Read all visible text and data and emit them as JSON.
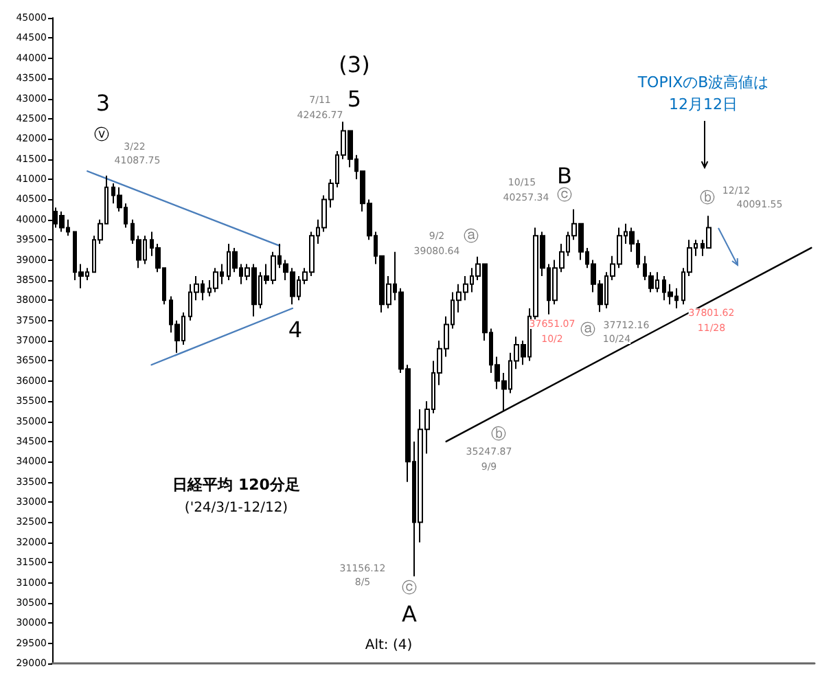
{
  "chart_data": {
    "type": "candlestick",
    "title": "日経平均 120分足",
    "subtitle": "('24/3/1-12/12)",
    "color": "#000000",
    "categories": [
      null,
      null,
      null,
      null,
      null,
      null,
      null,
      null,
      null,
      null,
      null,
      null,
      null,
      null,
      null,
      null,
      null,
      null,
      null,
      null,
      null,
      null,
      null,
      null,
      null,
      null,
      null,
      null,
      null,
      null,
      null,
      null,
      null,
      null,
      null,
      null,
      null,
      null,
      null,
      null,
      null,
      null,
      null,
      null,
      null,
      null,
      null,
      null,
      null,
      null,
      null,
      null,
      null,
      null,
      null,
      null,
      null,
      null,
      null,
      null,
      null,
      null,
      null,
      null,
      null,
      null,
      null,
      null,
      null,
      null,
      null,
      null,
      null,
      null,
      null,
      null,
      null,
      null,
      null,
      null,
      null,
      null,
      null,
      null,
      null,
      null,
      null,
      null,
      null,
      null,
      null,
      null,
      null,
      null,
      null,
      null,
      null,
      null,
      null,
      null,
      null,
      null,
      null,
      null,
      null,
      null,
      null,
      null,
      null,
      null,
      null,
      null,
      null,
      null,
      null,
      null,
      null,
      null,
      null
    ],
    "ohlc": [
      [
        40200,
        40300,
        39800,
        39900
      ],
      [
        40100,
        40200,
        39700,
        39800
      ],
      [
        39800,
        40000,
        39600,
        39700
      ],
      [
        39700,
        39700,
        38500,
        38700
      ],
      [
        38700,
        38900,
        38300,
        38600
      ],
      [
        38600,
        38800,
        38500,
        38700
      ],
      [
        38700,
        39600,
        38700,
        39500
      ],
      [
        39500,
        40000,
        39400,
        39900
      ],
      [
        39900,
        41087.75,
        39900,
        40800
      ],
      [
        40800,
        40900,
        40400,
        40600
      ],
      [
        40600,
        40800,
        40200,
        40300
      ],
      [
        40300,
        40400,
        39800,
        39900
      ],
      [
        39900,
        40000,
        39400,
        39500
      ],
      [
        39500,
        39600,
        38800,
        39000
      ],
      [
        39000,
        39600,
        38900,
        39500
      ],
      [
        39500,
        39700,
        39100,
        39300
      ],
      [
        39300,
        39400,
        38700,
        38800
      ],
      [
        38800,
        38800,
        37900,
        38000
      ],
      [
        38000,
        38100,
        37200,
        37400
      ],
      [
        37400,
        37500,
        36700,
        37000
      ],
      [
        37000,
        37700,
        36900,
        37600
      ],
      [
        37600,
        38400,
        37500,
        38200
      ],
      [
        38200,
        38600,
        38000,
        38400
      ],
      [
        38400,
        38500,
        38000,
        38200
      ],
      [
        38200,
        38500,
        38100,
        38300
      ],
      [
        38300,
        38800,
        38200,
        38700
      ],
      [
        38700,
        38900,
        38400,
        38600
      ],
      [
        38600,
        39400,
        38500,
        39200
      ],
      [
        39200,
        39300,
        38700,
        38800
      ],
      [
        38800,
        38900,
        38400,
        38600
      ],
      [
        38600,
        38900,
        38500,
        38800
      ],
      [
        38800,
        38900,
        37600,
        37900
      ],
      [
        37900,
        38700,
        37800,
        38600
      ],
      [
        38600,
        38900,
        38400,
        38500
      ],
      [
        38500,
        39200,
        38400,
        39100
      ],
      [
        39100,
        39400,
        38800,
        38900
      ],
      [
        38900,
        39000,
        38500,
        38700
      ],
      [
        38700,
        38800,
        37900,
        38100
      ],
      [
        38100,
        38600,
        38000,
        38500
      ],
      [
        38500,
        38800,
        38400,
        38700
      ],
      [
        38700,
        39700,
        38600,
        39600
      ],
      [
        39600,
        40000,
        39400,
        39800
      ],
      [
        39800,
        40600,
        39700,
        40500
      ],
      [
        40500,
        41000,
        40300,
        40900
      ],
      [
        40900,
        41700,
        40800,
        41600
      ],
      [
        41600,
        42426.77,
        41500,
        42200
      ],
      [
        42200,
        42200,
        41300,
        41500
      ],
      [
        41500,
        41600,
        41000,
        41200
      ],
      [
        41200,
        41200,
        40200,
        40400
      ],
      [
        40400,
        40500,
        39500,
        39600
      ],
      [
        39600,
        39700,
        38900,
        39100
      ],
      [
        39100,
        39100,
        37700,
        37900
      ],
      [
        37900,
        38600,
        37800,
        38400
      ],
      [
        38400,
        39200,
        38000,
        38200
      ],
      [
        38200,
        38300,
        36200,
        36300
      ],
      [
        36300,
        36400,
        33500,
        34000
      ],
      [
        34000,
        34500,
        31156.12,
        32500
      ],
      [
        32500,
        35300,
        32000,
        34800
      ],
      [
        34800,
        35500,
        34200,
        35300
      ],
      [
        35300,
        36500,
        35200,
        36200
      ],
      [
        36200,
        37000,
        35900,
        36800
      ],
      [
        36800,
        37600,
        36600,
        37400
      ],
      [
        37400,
        38200,
        37300,
        38000
      ],
      [
        38000,
        38400,
        37700,
        38200
      ],
      [
        38200,
        38600,
        38000,
        38400
      ],
      [
        38400,
        38800,
        38200,
        38600
      ],
      [
        38600,
        39080.64,
        38500,
        38900
      ],
      [
        38900,
        38900,
        37000,
        37200
      ],
      [
        37200,
        37300,
        36200,
        36400
      ],
      [
        36400,
        36600,
        35800,
        36000
      ],
      [
        36000,
        36200,
        35247.87,
        35800
      ],
      [
        35800,
        36700,
        35700,
        36500
      ],
      [
        36500,
        37100,
        36300,
        36900
      ],
      [
        36900,
        37000,
        36400,
        36600
      ],
      [
        36600,
        37800,
        36500,
        37600
      ],
      [
        37600,
        39800,
        37500,
        39600
      ],
      [
        39600,
        39700,
        38600,
        38800
      ],
      [
        38800,
        38900,
        37651.07,
        38000
      ],
      [
        38000,
        39000,
        37900,
        38800
      ],
      [
        38800,
        39400,
        38700,
        39200
      ],
      [
        39200,
        39700,
        39100,
        39600
      ],
      [
        39600,
        40257.34,
        39500,
        39900
      ],
      [
        39900,
        39900,
        39000,
        39200
      ],
      [
        39200,
        39300,
        38800,
        38900
      ],
      [
        38900,
        39000,
        38200,
        38400
      ],
      [
        38400,
        38500,
        37712.16,
        37900
      ],
      [
        37900,
        38700,
        37800,
        38600
      ],
      [
        38600,
        39100,
        38500,
        38900
      ],
      [
        38900,
        39800,
        38800,
        39600
      ],
      [
        39600,
        39900,
        39400,
        39700
      ],
      [
        39700,
        39800,
        39200,
        39400
      ],
      [
        39400,
        39500,
        38800,
        38900
      ],
      [
        38900,
        39100,
        38500,
        38600
      ],
      [
        38600,
        38700,
        38200,
        38300
      ],
      [
        38300,
        38700,
        38200,
        38500
      ],
      [
        38500,
        38600,
        38000,
        38200
      ],
      [
        38200,
        38400,
        37900,
        38100
      ],
      [
        38100,
        38300,
        37801.62,
        38000
      ],
      [
        38000,
        38800,
        37900,
        38700
      ],
      [
        38700,
        39500,
        38600,
        39300
      ],
      [
        39300,
        39500,
        39100,
        39400
      ],
      [
        39400,
        39500,
        39100,
        39300
      ],
      [
        39300,
        40091.55,
        39300,
        39800
      ],
      null,
      null,
      null,
      null,
      null,
      null,
      null,
      null,
      null,
      null,
      null,
      null,
      null,
      null,
      null,
      null
    ],
    "series": [
      {
        "type": "line",
        "color": "#4a7ebb",
        "values": [
          null,
          null,
          null,
          null,
          null,
          41200,
          null,
          null,
          null,
          null,
          null,
          null,
          null,
          null,
          null,
          null,
          null,
          null,
          null,
          null,
          null,
          null,
          null,
          null,
          null,
          null,
          null,
          null,
          null,
          null,
          null,
          null,
          null,
          null,
          null,
          39350,
          null,
          null,
          null,
          null,
          null,
          null,
          null,
          null,
          null,
          null,
          null,
          null,
          null,
          null,
          null,
          null,
          null,
          null,
          null,
          null,
          null,
          null,
          null,
          null,
          null,
          null,
          null,
          null,
          null,
          null,
          null,
          null,
          null,
          null,
          null,
          null,
          null,
          null,
          null,
          null,
          null,
          null,
          null,
          null,
          null,
          null,
          null,
          null,
          null,
          null,
          null,
          null,
          null,
          null,
          null,
          null,
          null,
          null,
          null,
          null,
          null,
          null,
          null,
          null,
          null,
          null,
          null,
          null,
          null,
          null,
          null,
          null,
          null,
          null,
          null,
          null,
          null,
          null,
          null,
          null,
          null,
          null,
          null
        ]
      },
      {
        "type": "line",
        "color": "#4a7ebb",
        "values": [
          null,
          null,
          null,
          null,
          null,
          null,
          null,
          null,
          null,
          null,
          null,
          null,
          null,
          null,
          null,
          36400,
          null,
          null,
          null,
          null,
          null,
          null,
          null,
          null,
          null,
          null,
          null,
          null,
          null,
          null,
          null,
          null,
          null,
          null,
          null,
          null,
          null,
          37800,
          null,
          null,
          null,
          null,
          null,
          null,
          null,
          null,
          null,
          null,
          null,
          null,
          null,
          null,
          null,
          null,
          null,
          null,
          null,
          null,
          null,
          null,
          null,
          null,
          null,
          null,
          null,
          null,
          null,
          null,
          null,
          null,
          null,
          null,
          null,
          null,
          null,
          null,
          null,
          null,
          null,
          null,
          null,
          null,
          null,
          null,
          null,
          null,
          null,
          null,
          null,
          null,
          null,
          null,
          null,
          null,
          null,
          null,
          null,
          null,
          null,
          null,
          null,
          null,
          null,
          null,
          null,
          null,
          null,
          null,
          null,
          null,
          null,
          null,
          null,
          null,
          null,
          null,
          null,
          null,
          null
        ]
      },
      {
        "type": "line",
        "color": "#000000",
        "values": [
          null,
          null,
          null,
          null,
          null,
          null,
          null,
          null,
          null,
          null,
          null,
          null,
          null,
          null,
          null,
          null,
          null,
          null,
          null,
          null,
          null,
          null,
          null,
          null,
          null,
          null,
          null,
          null,
          null,
          null,
          null,
          null,
          null,
          null,
          null,
          null,
          null,
          null,
          null,
          null,
          null,
          null,
          null,
          null,
          null,
          null,
          null,
          null,
          null,
          null,
          null,
          null,
          null,
          null,
          null,
          null,
          null,
          null,
          null,
          null,
          null,
          34500,
          null,
          null,
          null,
          null,
          null,
          null,
          null,
          null,
          null,
          null,
          null,
          null,
          null,
          null,
          null,
          null,
          null,
          null,
          null,
          null,
          null,
          null,
          null,
          null,
          null,
          null,
          null,
          null,
          null,
          null,
          null,
          null,
          null,
          null,
          null,
          null,
          null,
          null,
          null,
          null,
          null,
          null,
          null,
          null,
          null,
          null,
          null,
          null,
          null,
          null,
          null,
          null,
          null,
          null,
          null,
          null,
          39300
        ]
      }
    ],
    "ylim": [
      29000,
      45000
    ],
    "yticks": [
      29000,
      29500,
      30000,
      30500,
      31000,
      31500,
      32000,
      32500,
      33000,
      33500,
      34000,
      34500,
      35000,
      35500,
      36000,
      36500,
      37000,
      37500,
      38000,
      38500,
      39000,
      39500,
      40000,
      40500,
      41000,
      41500,
      42000,
      42500,
      43000,
      43500,
      44000,
      44500,
      45000
    ],
    "tick_labels": "y",
    "line_style": "solid",
    "grid": false,
    "annotations": [
      "3",
      "ⓥ",
      "3/22",
      "41087.75",
      "(3)",
      "5",
      "7/11",
      "42426.77",
      "4",
      "9/2",
      "39080.64",
      "ⓐ",
      "B",
      "10/15",
      "40257.34",
      "ⓒ",
      "ⓑ",
      "35247.87",
      "9/9",
      "37651.07",
      "10/2",
      "ⓐ",
      "37712.16",
      "10/24",
      "37801.62",
      "11/28",
      "ⓑ",
      "12/12",
      "40091.55",
      "31156.12",
      "8/5",
      "ⓒ",
      "A",
      "Alt: (4)",
      "TOPIXのB波高値は",
      "12月12日"
    ]
  }
}
